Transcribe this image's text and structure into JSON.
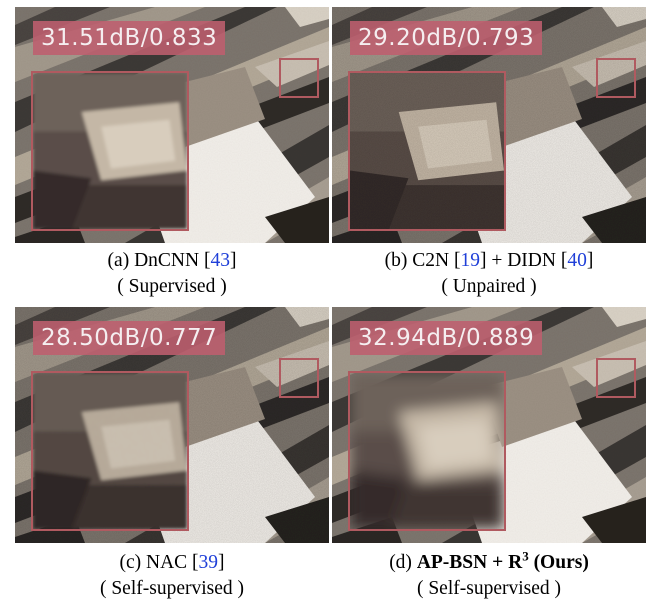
{
  "figure": {
    "panels": [
      {
        "id": "a",
        "metric": "31.51dB/0.833",
        "caption_prefix": "(a) DnCNN [",
        "ref1": "43",
        "caption_suffix": "]",
        "subtitle": "( Supervised )"
      },
      {
        "id": "b",
        "metric": "29.20dB/0.793",
        "caption_prefix": "(b) C2N [",
        "ref1": "19",
        "caption_middle": "] + DIDN [",
        "ref2": "40",
        "caption_suffix": "]",
        "subtitle": "( Unpaired )"
      },
      {
        "id": "c",
        "metric": "28.50dB/0.777",
        "caption_prefix": "(c) NAC [",
        "ref1": "39",
        "caption_suffix": "]",
        "subtitle": "( Self-supervised )"
      },
      {
        "id": "d",
        "metric": "32.94dB/0.889",
        "caption_prefix": "(d) ",
        "method": "AP-BSN + R",
        "method_sup": "3",
        "method_suffix": " (Ours)",
        "subtitle": "( Self-supervised )"
      }
    ],
    "colors": {
      "metric_badge": "#be5f6e",
      "box_border": "#b05a60",
      "reference_link": "#1f3fd8"
    }
  }
}
